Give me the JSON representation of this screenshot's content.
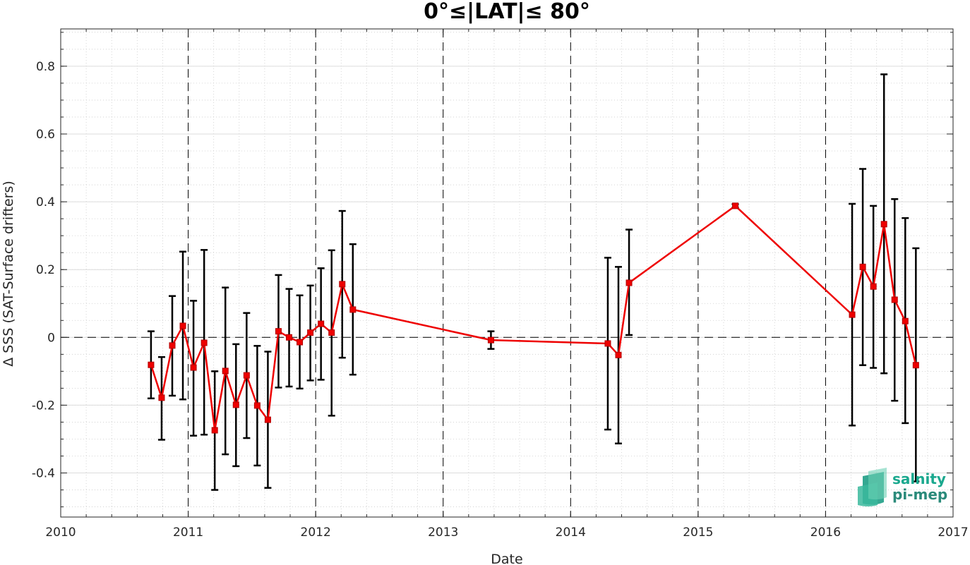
{
  "chart_data": {
    "type": "line",
    "title": "0°≤|LAT|≤ 80°",
    "xlabel": "Date",
    "ylabel": "Δ SSS (SAT-Surface drifters)",
    "xlim": [
      2010,
      2017
    ],
    "ylim": [
      -0.53,
      0.91
    ],
    "x_ticks": [
      "2010",
      "2011",
      "2012",
      "2013",
      "2014",
      "2015",
      "2016",
      "2017"
    ],
    "y_ticks": [
      "-0.4",
      "-0.2",
      "0",
      "0.2",
      "0.4",
      "0.6",
      "0.8"
    ],
    "grid": true,
    "year_separators": [
      "2011",
      "2012",
      "2013",
      "2014",
      "2015",
      "2016"
    ],
    "zero_line": 0,
    "series": [
      {
        "color": "#ee0000",
        "marker": "square",
        "points": [
          {
            "x": "2010-09",
            "y": -0.081,
            "err_low": -0.18,
            "err_high": 0.018
          },
          {
            "x": "2010-10",
            "y": -0.178,
            "err_low": -0.302,
            "err_high": -0.058
          },
          {
            "x": "2010-11",
            "y": -0.024,
            "err_low": -0.172,
            "err_high": 0.122
          },
          {
            "x": "2010-12",
            "y": 0.034,
            "err_low": -0.183,
            "err_high": 0.253
          },
          {
            "x": "2011-01",
            "y": -0.089,
            "err_low": -0.29,
            "err_high": 0.108
          },
          {
            "x": "2011-02",
            "y": -0.016,
            "err_low": -0.287,
            "err_high": 0.258
          },
          {
            "x": "2011-03",
            "y": -0.274,
            "err_low": -0.45,
            "err_high": -0.1
          },
          {
            "x": "2011-04",
            "y": -0.099,
            "err_low": -0.345,
            "err_high": 0.147
          },
          {
            "x": "2011-05",
            "y": -0.199,
            "err_low": -0.38,
            "err_high": -0.02
          },
          {
            "x": "2011-06",
            "y": -0.112,
            "err_low": -0.297,
            "err_high": 0.072
          },
          {
            "x": "2011-07",
            "y": -0.201,
            "err_low": -0.378,
            "err_high": -0.025
          },
          {
            "x": "2011-08",
            "y": -0.243,
            "err_low": -0.444,
            "err_high": -0.042
          },
          {
            "x": "2011-09",
            "y": 0.018,
            "err_low": -0.148,
            "err_high": 0.184
          },
          {
            "x": "2011-10",
            "y": 0.0,
            "err_low": -0.145,
            "err_high": 0.143
          },
          {
            "x": "2011-11",
            "y": -0.014,
            "err_low": -0.151,
            "err_high": 0.124
          },
          {
            "x": "2011-12",
            "y": 0.014,
            "err_low": -0.127,
            "err_high": 0.153
          },
          {
            "x": "2012-01",
            "y": 0.04,
            "err_low": -0.125,
            "err_high": 0.204
          },
          {
            "x": "2012-02",
            "y": 0.014,
            "err_low": -0.231,
            "err_high": 0.257
          },
          {
            "x": "2012-03",
            "y": 0.157,
            "err_low": -0.06,
            "err_high": 0.373
          },
          {
            "x": "2012-04",
            "y": 0.082,
            "err_low": -0.11,
            "err_high": 0.275
          },
          {
            "x": "2013-05",
            "y": -0.008,
            "err_low": -0.034,
            "err_high": 0.018
          },
          {
            "x": "2014-04",
            "y": -0.018,
            "err_low": -0.272,
            "err_high": 0.235
          },
          {
            "x": "2014-05",
            "y": -0.052,
            "err_low": -0.313,
            "err_high": 0.208
          },
          {
            "x": "2014-06",
            "y": 0.161,
            "err_low": 0.007,
            "err_high": 0.318
          },
          {
            "x": "2015-04",
            "y": 0.388,
            "err_low": 0.383,
            "err_high": 0.393
          },
          {
            "x": "2016-03",
            "y": 0.067,
            "err_low": -0.26,
            "err_high": 0.394
          },
          {
            "x": "2016-04",
            "y": 0.208,
            "err_low": -0.082,
            "err_high": 0.497
          },
          {
            "x": "2016-05",
            "y": 0.15,
            "err_low": -0.09,
            "err_high": 0.388
          },
          {
            "x": "2016-06",
            "y": 0.334,
            "err_low": -0.106,
            "err_high": 0.776
          },
          {
            "x": "2016-07",
            "y": 0.111,
            "err_low": -0.187,
            "err_high": 0.408
          },
          {
            "x": "2016-08",
            "y": 0.048,
            "err_low": -0.253,
            "err_high": 0.352
          },
          {
            "x": "2016-09",
            "y": -0.082,
            "err_low": -0.425,
            "err_high": 0.263
          }
        ]
      }
    ]
  },
  "logo": {
    "line1": "salnity",
    "line2": "pi-mep",
    "color1": "#1aa88e",
    "color2": "#2a8a7a"
  }
}
